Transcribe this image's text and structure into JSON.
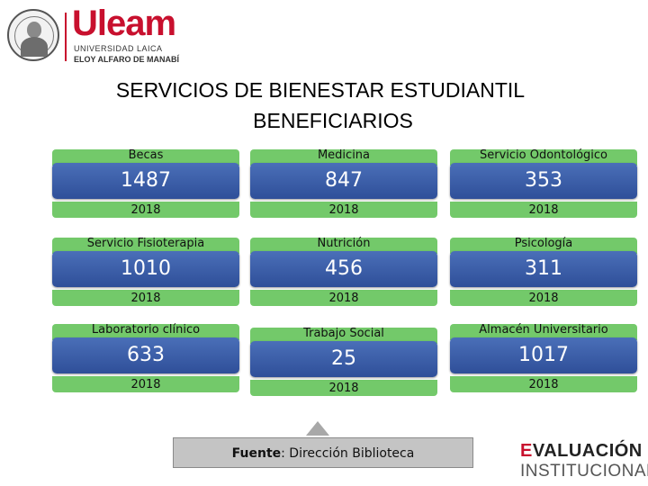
{
  "header": {
    "logo_name": "Uleam",
    "logo_sub1": "UNIVERSIDAD LAICA",
    "logo_sub2": "ELOY ALFARO DE MANABÍ"
  },
  "title": {
    "line1": "SERVICIOS DE BIENESTAR ESTUDIANTIL",
    "line2": "BENEFICIARIOS"
  },
  "colors": {
    "green_band": "#73c96a",
    "blue_box": "#3a5ba6",
    "brand_red": "#c8102e"
  },
  "cards": [
    {
      "label": "Becas",
      "value": "1487",
      "year": "2018"
    },
    {
      "label": "Medicina",
      "value": "847",
      "year": "2018"
    },
    {
      "label": "Servicio Odontológico",
      "value": "353",
      "year": "2018"
    },
    {
      "label": "Servicio Fisioterapia",
      "value": "1010",
      "year": "2018"
    },
    {
      "label": "Nutrición",
      "value": "456",
      "year": "2018"
    },
    {
      "label": "Psicología",
      "value": "311",
      "year": "2018"
    },
    {
      "label": "Laboratorio clínico",
      "value": "633",
      "year": "2018"
    },
    {
      "label": "Trabajo Social",
      "value": "25",
      "year": "2018"
    },
    {
      "label": "Almacén Universitario",
      "value": "1017",
      "year": "2018"
    }
  ],
  "source": {
    "label": "Fuente",
    "text": ": Dirección Biblioteca"
  },
  "footer_logo": {
    "line1_check": "E",
    "line1_rest": "VALUACIÓN",
    "line2": "INSTITUCIONAL"
  }
}
